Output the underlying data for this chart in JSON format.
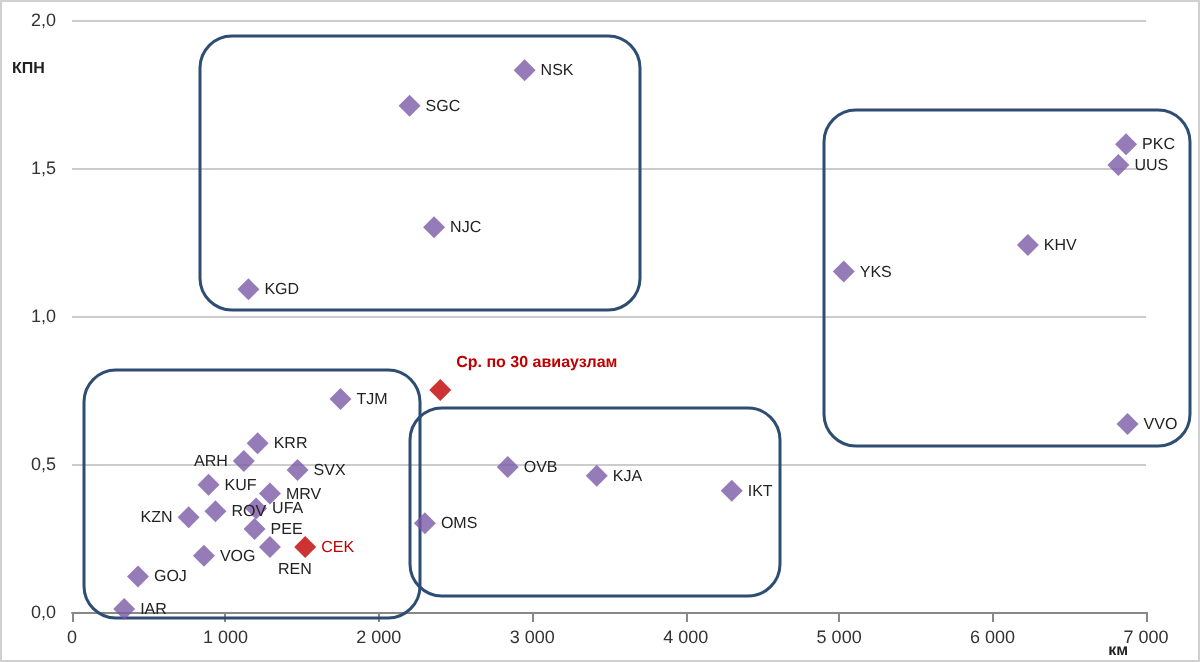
{
  "chart_data": {
    "type": "scatter",
    "xlabel": "км",
    "ylabel": "КПН",
    "x": [
      2950,
      2200,
      2360,
      1150,
      6870,
      6820,
      6230,
      5030,
      6880,
      4300,
      3420,
      2840,
      2300,
      2400,
      1750,
      1210,
      1120,
      1470,
      890,
      1290,
      1200,
      935,
      760,
      1190,
      1290,
      1520,
      860,
      430,
      340
    ],
    "series": [
      {
        "values": [
          1.83,
          1.71,
          1.3,
          1.09,
          1.58,
          1.51,
          1.24,
          1.15,
          0.635,
          0.41,
          0.46,
          0.49,
          0.3,
          0.75,
          0.72,
          0.57,
          0.51,
          0.48,
          0.43,
          0.4,
          0.35,
          0.34,
          0.32,
          0.28,
          0.22,
          0.22,
          0.19,
          0.12,
          0.01
        ],
        "colors": [
          "#7b5aa6",
          "#7b5aa6",
          "#7b5aa6",
          "#7b5aa6",
          "#7b5aa6",
          "#7b5aa6",
          "#7b5aa6",
          "#7b5aa6",
          "#7b5aa6",
          "#7b5aa6",
          "#7b5aa6",
          "#7b5aa6",
          "#7b5aa6",
          "#c00000",
          "#7b5aa6",
          "#7b5aa6",
          "#7b5aa6",
          "#7b5aa6",
          "#7b5aa6",
          "#7b5aa6",
          "#7b5aa6",
          "#7b5aa6",
          "#7b5aa6",
          "#7b5aa6",
          "#7b5aa6",
          "#c00000",
          "#7b5aa6",
          "#7b5aa6",
          "#7b5aa6"
        ]
      }
    ],
    "xlim": [
      0,
      7000
    ],
    "ylim": [
      0,
      2
    ],
    "xticks": [
      0,
      {
        "value": 1000,
        "label": "1 000"
      },
      {
        "value": 2000,
        "label": "2 000"
      },
      {
        "value": 3000,
        "label": "3 000"
      },
      {
        "value": 4000,
        "label": "4 000"
      },
      {
        "value": 5000,
        "label": "5 000"
      },
      {
        "value": 6000,
        "label": "6 000"
      },
      {
        "value": 7000,
        "label": "7 000"
      }
    ],
    "yticks": [
      {
        "value": 0,
        "label": "0,0"
      },
      {
        "value": 0.5,
        "label": "0,5"
      },
      {
        "value": 1,
        "label": "1,0"
      },
      {
        "value": 1.5,
        "label": "1,5"
      },
      {
        "value": 2,
        "label": "2,0"
      }
    ],
    "grid": "y",
    "marker": "diamond",
    "annotations": [
      {
        "text": "NSK",
        "x": 2950,
        "y": 1.83
      },
      {
        "text": "SGC",
        "x": 2200,
        "y": 1.71
      },
      {
        "text": "NJC",
        "x": 2360,
        "y": 1.3
      },
      {
        "text": "KGD",
        "x": 1150,
        "y": 1.09
      },
      {
        "text": "PKC",
        "x": 6870,
        "y": 1.58
      },
      {
        "text": "UUS",
        "x": 6820,
        "y": 1.51
      },
      {
        "text": "KHV",
        "x": 6230,
        "y": 1.24
      },
      {
        "text": "YKS",
        "x": 5030,
        "y": 1.15
      },
      {
        "text": "VVO",
        "x": 6880,
        "y": 0.635
      },
      {
        "text": "IKT",
        "x": 4300,
        "y": 0.41
      },
      {
        "text": "KJA",
        "x": 3420,
        "y": 0.46
      },
      {
        "text": "OVB",
        "x": 2840,
        "y": 0.49
      },
      {
        "text": "OMS",
        "x": 2300,
        "y": 0.3
      },
      {
        "text": "Ср. по 30 авиаузлам",
        "x": 2400,
        "y": 0.75
      },
      {
        "text": "TJM",
        "x": 1750,
        "y": 0.72
      },
      {
        "text": "KRR",
        "x": 1210,
        "y": 0.57
      },
      {
        "text": "ARH",
        "x": 1120,
        "y": 0.51
      },
      {
        "text": "SVX",
        "x": 1470,
        "y": 0.48
      },
      {
        "text": "KUF",
        "x": 890,
        "y": 0.43
      },
      {
        "text": "MRV",
        "x": 1290,
        "y": 0.4
      },
      {
        "text": "UFA",
        "x": 1200,
        "y": 0.35
      },
      {
        "text": "ROV",
        "x": 935,
        "y": 0.34
      },
      {
        "text": "KZN",
        "x": 760,
        "y": 0.32
      },
      {
        "text": "PEE",
        "x": 1190,
        "y": 0.28
      },
      {
        "text": "REN",
        "x": 1290,
        "y": 0.22
      },
      {
        "text": "CEK",
        "x": 1520,
        "y": 0.22
      },
      {
        "text": "VOG",
        "x": 860,
        "y": 0.19
      },
      {
        "text": "GOJ",
        "x": 430,
        "y": 0.12
      },
      {
        "text": "IAR",
        "x": 340,
        "y": 0.01
      }
    ]
  }
}
